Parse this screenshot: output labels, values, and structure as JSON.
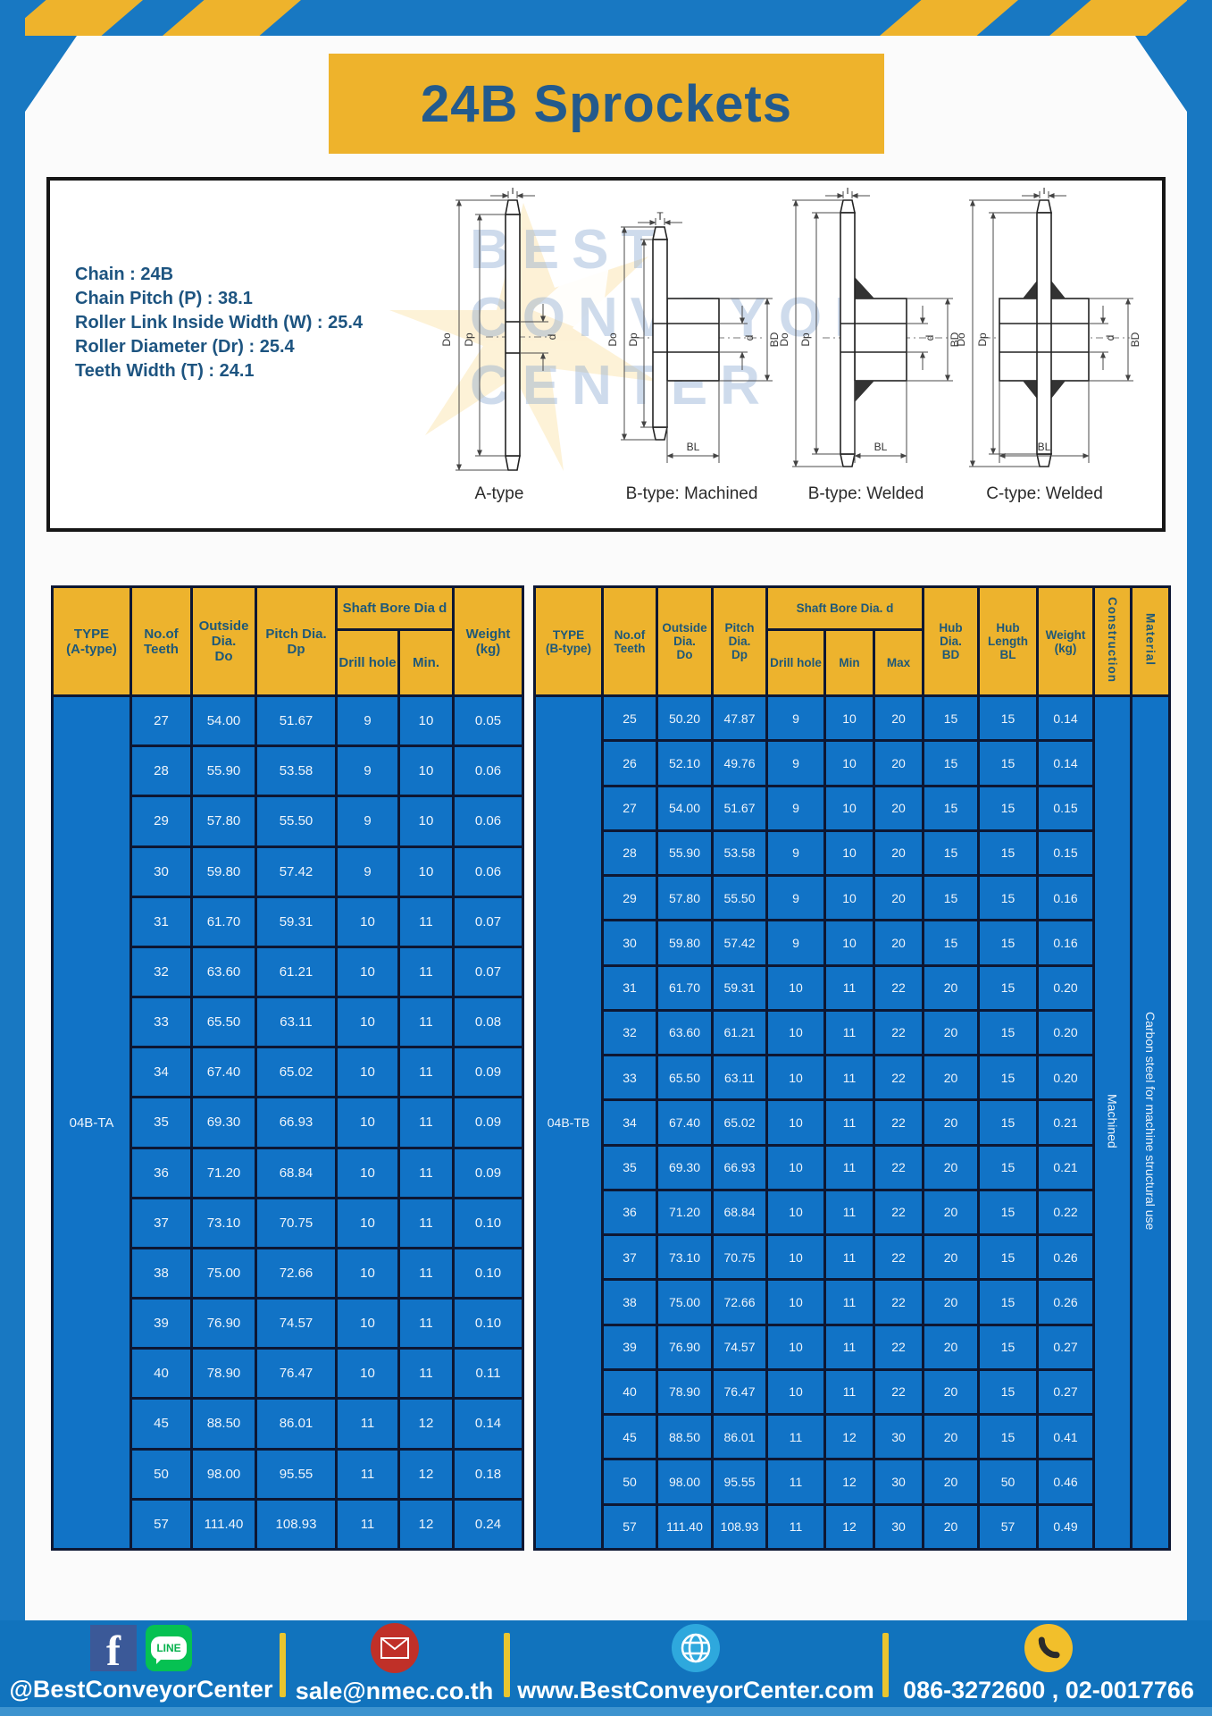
{
  "page": {
    "title": "24B Sprockets"
  },
  "specs": {
    "lines": [
      "Chain  : 24B",
      "Chain Pitch (P)  :  38.1",
      "Roller Link Inside Width (W)  :  25.4",
      "Roller Diameter (Dr)  : 25.4",
      "Teeth Width (T)  :  24.1"
    ]
  },
  "diagram": {
    "watermark_lines": [
      "BEST",
      "CONVEYOR",
      "CENTER"
    ],
    "types": [
      "A-type",
      "B-type: Machined",
      "B-type: Welded",
      "C-type: Welded"
    ],
    "dims": {
      "T": "T",
      "Do": "Do",
      "Dp": "Dp",
      "d": "d",
      "BD": "BD",
      "BL": "BL"
    }
  },
  "table_a": {
    "type_label": "04B-TA",
    "headers": {
      "type": "TYPE\n(A-type)",
      "teeth": "No.of\nTeeth",
      "outside": "Outside\nDia.\nDo",
      "pitch": "Pitch Dia.\nDp",
      "shaft_bore": "Shaft Bore Dia d",
      "drill": "Drill hole",
      "min": "Min.",
      "weight": "Weight\n(kg)"
    },
    "rows": [
      [
        "27",
        "54.00",
        "51.67",
        "9",
        "10",
        "0.05"
      ],
      [
        "28",
        "55.90",
        "53.58",
        "9",
        "10",
        "0.06"
      ],
      [
        "29",
        "57.80",
        "55.50",
        "9",
        "10",
        "0.06"
      ],
      [
        "30",
        "59.80",
        "57.42",
        "9",
        "10",
        "0.06"
      ],
      [
        "31",
        "61.70",
        "59.31",
        "10",
        "11",
        "0.07"
      ],
      [
        "32",
        "63.60",
        "61.21",
        "10",
        "11",
        "0.07"
      ],
      [
        "33",
        "65.50",
        "63.11",
        "10",
        "11",
        "0.08"
      ],
      [
        "34",
        "67.40",
        "65.02",
        "10",
        "11",
        "0.09"
      ],
      [
        "35",
        "69.30",
        "66.93",
        "10",
        "11",
        "0.09"
      ],
      [
        "36",
        "71.20",
        "68.84",
        "10",
        "11",
        "0.09"
      ],
      [
        "37",
        "73.10",
        "70.75",
        "10",
        "11",
        "0.10"
      ],
      [
        "38",
        "75.00",
        "72.66",
        "10",
        "11",
        "0.10"
      ],
      [
        "39",
        "76.90",
        "74.57",
        "10",
        "11",
        "0.10"
      ],
      [
        "40",
        "78.90",
        "76.47",
        "10",
        "11",
        "0.11"
      ],
      [
        "45",
        "88.50",
        "86.01",
        "11",
        "12",
        "0.14"
      ],
      [
        "50",
        "98.00",
        "95.55",
        "11",
        "12",
        "0.18"
      ],
      [
        "57",
        "111.40",
        "108.93",
        "11",
        "12",
        "0.24"
      ]
    ]
  },
  "table_b": {
    "type_label": "04B-TB",
    "construction": "Machined",
    "material": "Carbon steel for machine structural use",
    "headers": {
      "type": "TYPE\n(B-type)",
      "teeth": "No.of\nTeeth",
      "outside": "Outside\nDia.\nDo",
      "pitch": "Pitch\nDia.\nDp",
      "shaft_bore": "Shaft Bore Dia.  d",
      "drill": "Drill hole",
      "min": "Min",
      "max": "Max",
      "hub_dia": "Hub\nDia.\nBD",
      "hub_len": "Hub\nLength\nBL",
      "weight": "Weight\n(kg)",
      "construction": "Construction",
      "material": "Material"
    },
    "rows": [
      [
        "25",
        "50.20",
        "47.87",
        "9",
        "10",
        "20",
        "15",
        "15",
        "0.14"
      ],
      [
        "26",
        "52.10",
        "49.76",
        "9",
        "10",
        "20",
        "15",
        "15",
        "0.14"
      ],
      [
        "27",
        "54.00",
        "51.67",
        "9",
        "10",
        "20",
        "15",
        "15",
        "0.15"
      ],
      [
        "28",
        "55.90",
        "53.58",
        "9",
        "10",
        "20",
        "15",
        "15",
        "0.15"
      ],
      [
        "29",
        "57.80",
        "55.50",
        "9",
        "10",
        "20",
        "15",
        "15",
        "0.16"
      ],
      [
        "30",
        "59.80",
        "57.42",
        "9",
        "10",
        "20",
        "15",
        "15",
        "0.16"
      ],
      [
        "31",
        "61.70",
        "59.31",
        "10",
        "11",
        "22",
        "20",
        "15",
        "0.20"
      ],
      [
        "32",
        "63.60",
        "61.21",
        "10",
        "11",
        "22",
        "20",
        "15",
        "0.20"
      ],
      [
        "33",
        "65.50",
        "63.11",
        "10",
        "11",
        "22",
        "20",
        "15",
        "0.20"
      ],
      [
        "34",
        "67.40",
        "65.02",
        "10",
        "11",
        "22",
        "20",
        "15",
        "0.21"
      ],
      [
        "35",
        "69.30",
        "66.93",
        "10",
        "11",
        "22",
        "20",
        "15",
        "0.21"
      ],
      [
        "36",
        "71.20",
        "68.84",
        "10",
        "11",
        "22",
        "20",
        "15",
        "0.22"
      ],
      [
        "37",
        "73.10",
        "70.75",
        "10",
        "11",
        "22",
        "20",
        "15",
        "0.26"
      ],
      [
        "38",
        "75.00",
        "72.66",
        "10",
        "11",
        "22",
        "20",
        "15",
        "0.26"
      ],
      [
        "39",
        "76.90",
        "74.57",
        "10",
        "11",
        "22",
        "20",
        "15",
        "0.27"
      ],
      [
        "40",
        "78.90",
        "76.47",
        "10",
        "11",
        "22",
        "20",
        "15",
        "0.27"
      ],
      [
        "45",
        "88.50",
        "86.01",
        "11",
        "12",
        "30",
        "20",
        "15",
        "0.41"
      ],
      [
        "50",
        "98.00",
        "95.55",
        "11",
        "12",
        "30",
        "20",
        "50",
        "0.46"
      ],
      [
        "57",
        "111.40",
        "108.93",
        "11",
        "12",
        "30",
        "20",
        "57",
        "0.49"
      ]
    ]
  },
  "footer": {
    "facebook_icon_text": "f",
    "line_icon_text": "LINE",
    "facebook_label": "@BestConveyorCenter",
    "email_label": "sale@nmec.co.th",
    "website_label": "www.BestConveyorCenter.com",
    "phone_label": "086-3272600 , 02-0017766"
  },
  "colors": {
    "frame_blue": "#1878c2",
    "accent_yellow": "#eeb32c",
    "table_cell_blue": "#1173c6",
    "table_border_navy": "#0d1733",
    "header_text_navy": "#1e5878",
    "title_navy": "#235a8c",
    "footer_blue": "#1173bd"
  }
}
